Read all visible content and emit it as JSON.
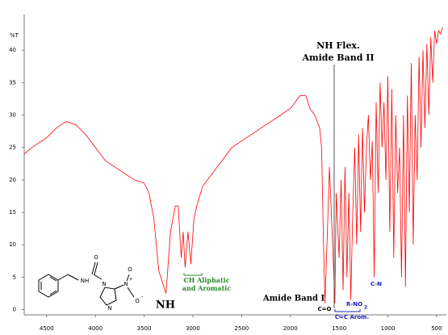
{
  "chart_data": {
    "type": "line",
    "y_label": "%T",
    "x": [
      4730,
      4650,
      4500,
      4400,
      4300,
      4200,
      4100,
      4000,
      3900,
      3800,
      3700,
      3600,
      3500,
      3450,
      3400,
      3350,
      3275,
      3230,
      3180,
      3150,
      3120,
      3100,
      3080,
      3050,
      3020,
      2990,
      2960,
      2900,
      2800,
      2700,
      2600,
      2500,
      2400,
      2300,
      2200,
      2100,
      2000,
      1950,
      1900,
      1842,
      1800,
      1750,
      1700,
      1680,
      1660,
      1645,
      1620,
      1600,
      1580,
      1543,
      1530,
      1500,
      1480,
      1460,
      1440,
      1420,
      1400,
      1380,
      1360,
      1340,
      1320,
      1300,
      1280,
      1260,
      1240,
      1220,
      1200,
      1180,
      1160,
      1140,
      1120,
      1100,
      1080,
      1060,
      1040,
      1020,
      1000,
      980,
      960,
      940,
      920,
      900,
      880,
      860,
      840,
      820,
      800,
      780,
      760,
      740,
      720,
      700,
      680,
      660,
      640,
      620,
      600,
      580,
      560,
      540,
      520,
      500,
      480,
      460,
      440
    ],
    "values": [
      24,
      25,
      26.5,
      28,
      29,
      28.5,
      27,
      25,
      23,
      22,
      21,
      20,
      19.5,
      18,
      14,
      6,
      2.5,
      12,
      16,
      16,
      8,
      12,
      6.5,
      12,
      7,
      14,
      16,
      19,
      21,
      23,
      25,
      26,
      27,
      28,
      29,
      30,
      31,
      32,
      33,
      33,
      31,
      30,
      28,
      25,
      10,
      1,
      12,
      22,
      15,
      1,
      18,
      8,
      20,
      3,
      22,
      5,
      18,
      1.5,
      15,
      25,
      10,
      27,
      12,
      28,
      15,
      25,
      30,
      20,
      26,
      5,
      32,
      18,
      35,
      25,
      32,
      20,
      36,
      12,
      34,
      8,
      30,
      18,
      25,
      5,
      30,
      3.5,
      33,
      15,
      38,
      10,
      30,
      20,
      39,
      25,
      40,
      28,
      41,
      30,
      42,
      35,
      43,
      41,
      43,
      42.5,
      43.5
    ],
    "color": "#ff0000",
    "xlim": [
      4730,
      400
    ],
    "ylim": [
      -0.8,
      45.5
    ],
    "xticks": [
      4500,
      4000,
      3500,
      3000,
      2500,
      2000,
      1500,
      1000,
      500
    ],
    "yticks": [
      0,
      5,
      10,
      15,
      20,
      25,
      30,
      35,
      40
    ],
    "annotations": [
      "NH Flex.",
      "Amide Band II",
      "NH",
      "CH Aliphatic",
      "and Aromatic",
      "Amide Band I",
      "C=O",
      "C=C Arom.",
      "R-NO",
      "2",
      "C-N"
    ],
    "molecule_labels": [
      "O",
      "NH",
      "N",
      "N",
      "N",
      "+",
      "O",
      "-",
      "O"
    ]
  }
}
